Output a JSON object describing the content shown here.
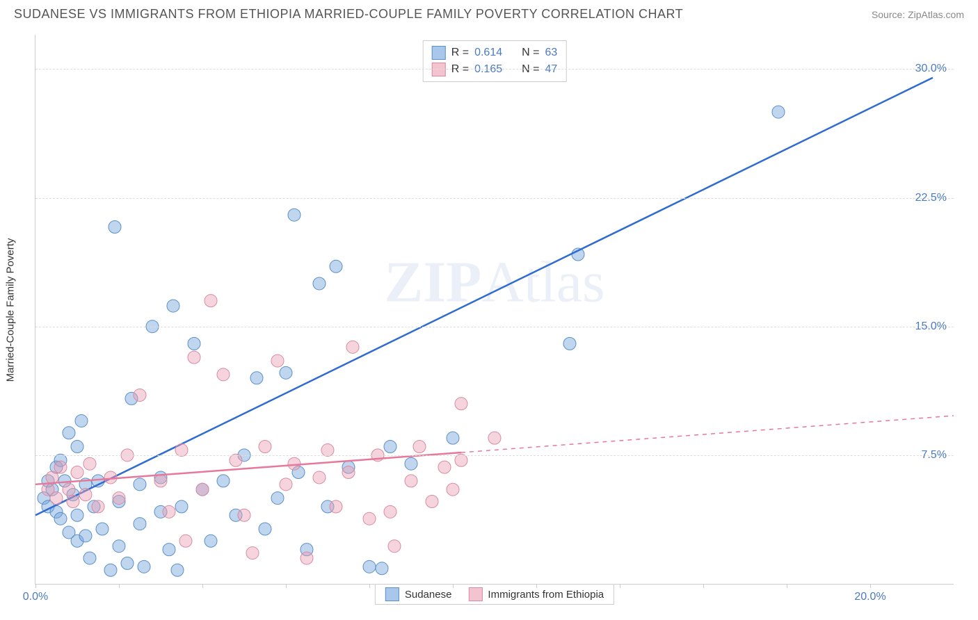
{
  "title": "SUDANESE VS IMMIGRANTS FROM ETHIOPIA MARRIED-COUPLE FAMILY POVERTY CORRELATION CHART",
  "source": "Source: ZipAtlas.com",
  "ylabel": "Married-Couple Family Poverty",
  "watermark": "ZIPAtlas",
  "chart": {
    "type": "scatter",
    "background_color": "#ffffff",
    "grid_color": "#dddddd",
    "axis_color": "#cccccc",
    "label_color": "#4a7ac0",
    "text_color": "#333333",
    "xlim": [
      0,
      22
    ],
    "ylim": [
      0,
      32
    ],
    "xticks": [
      0,
      2,
      4,
      6,
      8,
      10,
      12,
      14,
      16,
      18,
      20
    ],
    "xtick_labels": {
      "0": "0.0%",
      "20": "20.0%"
    },
    "yticks": [
      7.5,
      15.0,
      22.5,
      30.0
    ],
    "ytick_labels": [
      "7.5%",
      "15.0%",
      "22.5%",
      "30.0%"
    ],
    "marker_radius": 9,
    "marker_stroke_width": 1,
    "line_width": 2.5
  },
  "series": [
    {
      "name": "Sudanese",
      "fill": "rgba(115, 165, 220, 0.45)",
      "stroke": "#5a8fc9",
      "swatch_fill": "#a9c7eb",
      "swatch_stroke": "#5a8fc9",
      "r_value": "0.614",
      "n_value": "63",
      "regression": {
        "x1": 0,
        "y1": 4.0,
        "x2": 21.5,
        "y2": 29.5,
        "solid_until_x": 21.5,
        "color": "#2f6bd0"
      },
      "points": [
        [
          0.2,
          5.0
        ],
        [
          0.3,
          6.0
        ],
        [
          0.3,
          4.5
        ],
        [
          0.4,
          5.5
        ],
        [
          0.5,
          6.8
        ],
        [
          0.5,
          4.2
        ],
        [
          0.6,
          7.2
        ],
        [
          0.6,
          3.8
        ],
        [
          0.7,
          6.0
        ],
        [
          0.8,
          8.8
        ],
        [
          0.8,
          3.0
        ],
        [
          0.9,
          5.2
        ],
        [
          1.0,
          8.0
        ],
        [
          1.0,
          4.0
        ],
        [
          1.0,
          2.5
        ],
        [
          1.1,
          9.5
        ],
        [
          1.2,
          5.8
        ],
        [
          1.2,
          2.8
        ],
        [
          1.3,
          1.5
        ],
        [
          1.4,
          4.5
        ],
        [
          1.5,
          6.0
        ],
        [
          1.6,
          3.2
        ],
        [
          1.8,
          0.8
        ],
        [
          1.9,
          20.8
        ],
        [
          2.0,
          4.8
        ],
        [
          2.0,
          2.2
        ],
        [
          2.2,
          1.2
        ],
        [
          2.3,
          10.8
        ],
        [
          2.5,
          3.5
        ],
        [
          2.5,
          5.8
        ],
        [
          2.6,
          1.0
        ],
        [
          2.8,
          15.0
        ],
        [
          3.0,
          4.2
        ],
        [
          3.0,
          6.2
        ],
        [
          3.2,
          2.0
        ],
        [
          3.3,
          16.2
        ],
        [
          3.4,
          0.8
        ],
        [
          3.5,
          4.5
        ],
        [
          3.8,
          14.0
        ],
        [
          4.0,
          5.5
        ],
        [
          4.2,
          2.5
        ],
        [
          4.5,
          6.0
        ],
        [
          4.8,
          4.0
        ],
        [
          5.0,
          7.5
        ],
        [
          5.3,
          12.0
        ],
        [
          5.5,
          3.2
        ],
        [
          5.8,
          5.0
        ],
        [
          6.0,
          12.3
        ],
        [
          6.2,
          21.5
        ],
        [
          6.3,
          6.5
        ],
        [
          6.5,
          2.0
        ],
        [
          6.8,
          17.5
        ],
        [
          7.0,
          4.5
        ],
        [
          7.2,
          18.5
        ],
        [
          7.5,
          6.8
        ],
        [
          8.0,
          1.0
        ],
        [
          8.3,
          0.9
        ],
        [
          8.5,
          8.0
        ],
        [
          9.0,
          7.0
        ],
        [
          10.0,
          8.5
        ],
        [
          12.8,
          14.0
        ],
        [
          13.0,
          19.2
        ],
        [
          17.8,
          27.5
        ]
      ]
    },
    {
      "name": "Immigrants from Ethiopia",
      "fill": "rgba(235, 160, 180, 0.45)",
      "stroke": "#d98aa0",
      "swatch_fill": "#f3c3d0",
      "swatch_stroke": "#d98aa0",
      "r_value": "0.165",
      "n_value": "47",
      "regression": {
        "x1": 0,
        "y1": 5.8,
        "x2": 22,
        "y2": 9.8,
        "solid_until_x": 10.2,
        "color": "#e6789a"
      },
      "points": [
        [
          0.3,
          5.5
        ],
        [
          0.4,
          6.2
        ],
        [
          0.5,
          5.0
        ],
        [
          0.6,
          6.8
        ],
        [
          0.8,
          5.5
        ],
        [
          0.9,
          4.8
        ],
        [
          1.0,
          6.5
        ],
        [
          1.2,
          5.2
        ],
        [
          1.3,
          7.0
        ],
        [
          1.5,
          4.5
        ],
        [
          1.8,
          6.2
        ],
        [
          2.0,
          5.0
        ],
        [
          2.2,
          7.5
        ],
        [
          2.5,
          11.0
        ],
        [
          3.0,
          6.0
        ],
        [
          3.2,
          4.2
        ],
        [
          3.5,
          7.8
        ],
        [
          3.6,
          2.5
        ],
        [
          3.8,
          13.2
        ],
        [
          4.0,
          5.5
        ],
        [
          4.2,
          16.5
        ],
        [
          4.5,
          12.2
        ],
        [
          4.8,
          7.2
        ],
        [
          5.0,
          4.0
        ],
        [
          5.2,
          1.8
        ],
        [
          5.5,
          8.0
        ],
        [
          5.8,
          13.0
        ],
        [
          6.0,
          5.8
        ],
        [
          6.2,
          7.0
        ],
        [
          6.5,
          1.5
        ],
        [
          6.8,
          6.2
        ],
        [
          7.0,
          7.8
        ],
        [
          7.2,
          4.5
        ],
        [
          7.5,
          6.5
        ],
        [
          7.6,
          13.8
        ],
        [
          8.0,
          3.8
        ],
        [
          8.2,
          7.5
        ],
        [
          8.5,
          4.2
        ],
        [
          8.6,
          2.2
        ],
        [
          9.0,
          6.0
        ],
        [
          9.2,
          8.0
        ],
        [
          9.5,
          4.8
        ],
        [
          9.8,
          6.8
        ],
        [
          10.0,
          5.5
        ],
        [
          10.2,
          10.5
        ],
        [
          10.2,
          7.2
        ],
        [
          11.0,
          8.5
        ]
      ]
    }
  ],
  "legend": {
    "r_label": "R =",
    "n_label": "N ="
  }
}
